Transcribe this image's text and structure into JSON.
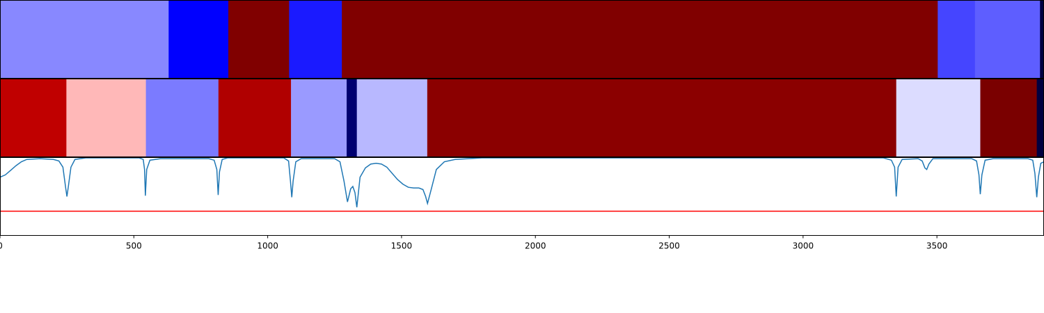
{
  "chart_data": {
    "type": "heatmap",
    "title": "",
    "xlabel": "",
    "ylabel": "",
    "xlim": [
      0,
      3900
    ],
    "x_ticks": [
      "0",
      "500",
      "1000",
      "1500",
      "2000",
      "2500",
      "3000",
      "3500"
    ],
    "tick_values": [
      0,
      500,
      1000,
      1500,
      2000,
      2500,
      3000,
      3500
    ],
    "segment_rows": [
      {
        "row": 1,
        "segments": [
          {
            "start": 0,
            "end": 630,
            "color": "#8888ff"
          },
          {
            "start": 630,
            "end": 853,
            "color": "#0000ff"
          },
          {
            "start": 853,
            "end": 1080,
            "color": "#800000"
          },
          {
            "start": 1080,
            "end": 1277,
            "color": "#1a1aff"
          },
          {
            "start": 1277,
            "end": 3503,
            "color": "#800000"
          },
          {
            "start": 3503,
            "end": 3642,
            "color": "#4545ff"
          },
          {
            "start": 3642,
            "end": 3885,
            "color": "#5e5eff"
          },
          {
            "start": 3885,
            "end": 3900,
            "color": "#000040"
          }
        ]
      },
      {
        "row": 2,
        "segments": [
          {
            "start": 0,
            "end": 248,
            "color": "#c00000"
          },
          {
            "start": 248,
            "end": 545,
            "color": "#ffb8b8"
          },
          {
            "start": 545,
            "end": 816,
            "color": "#7b7bff"
          },
          {
            "start": 816,
            "end": 1087,
            "color": "#b00000"
          },
          {
            "start": 1087,
            "end": 1295,
            "color": "#9a9aff"
          },
          {
            "start": 1295,
            "end": 1333,
            "color": "#000070"
          },
          {
            "start": 1333,
            "end": 1596,
            "color": "#b8b8ff"
          },
          {
            "start": 1596,
            "end": 3348,
            "color": "#8b0000"
          },
          {
            "start": 3348,
            "end": 3662,
            "color": "#dcdcff"
          },
          {
            "start": 3662,
            "end": 3873,
            "color": "#7a0000"
          },
          {
            "start": 3873,
            "end": 3900,
            "color": "#000040"
          }
        ]
      }
    ],
    "line_panel": {
      "ylim": [
        0,
        1
      ],
      "threshold": {
        "y": 0.31,
        "color": "#ff0000"
      },
      "line_color": "#1f77b4",
      "points": [
        [
          0,
          0.75
        ],
        [
          20,
          0.78
        ],
        [
          40,
          0.84
        ],
        [
          60,
          0.9
        ],
        [
          80,
          0.95
        ],
        [
          100,
          0.98
        ],
        [
          150,
          0.99
        ],
        [
          200,
          0.98
        ],
        [
          220,
          0.96
        ],
        [
          235,
          0.88
        ],
        [
          245,
          0.62
        ],
        [
          250,
          0.5
        ],
        [
          255,
          0.62
        ],
        [
          265,
          0.88
        ],
        [
          280,
          0.98
        ],
        [
          320,
          1.0
        ],
        [
          520,
          1.0
        ],
        [
          535,
          0.98
        ],
        [
          540,
          0.85
        ],
        [
          543,
          0.51
        ],
        [
          548,
          0.85
        ],
        [
          560,
          0.97
        ],
        [
          600,
          0.99
        ],
        [
          780,
          0.99
        ],
        [
          800,
          0.97
        ],
        [
          810,
          0.85
        ],
        [
          815,
          0.52
        ],
        [
          820,
          0.82
        ],
        [
          830,
          0.98
        ],
        [
          850,
          1.0
        ],
        [
          1060,
          1.0
        ],
        [
          1078,
          0.96
        ],
        [
          1085,
          0.7
        ],
        [
          1090,
          0.49
        ],
        [
          1095,
          0.7
        ],
        [
          1105,
          0.95
        ],
        [
          1125,
          0.99
        ],
        [
          1250,
          0.99
        ],
        [
          1270,
          0.95
        ],
        [
          1285,
          0.7
        ],
        [
          1298,
          0.43
        ],
        [
          1310,
          0.6
        ],
        [
          1318,
          0.63
        ],
        [
          1326,
          0.55
        ],
        [
          1333,
          0.36
        ],
        [
          1345,
          0.75
        ],
        [
          1365,
          0.87
        ],
        [
          1385,
          0.92
        ],
        [
          1405,
          0.93
        ],
        [
          1425,
          0.92
        ],
        [
          1445,
          0.88
        ],
        [
          1465,
          0.8
        ],
        [
          1485,
          0.72
        ],
        [
          1505,
          0.66
        ],
        [
          1525,
          0.62
        ],
        [
          1545,
          0.61
        ],
        [
          1565,
          0.61
        ],
        [
          1580,
          0.59
        ],
        [
          1590,
          0.5
        ],
        [
          1597,
          0.41
        ],
        [
          1610,
          0.58
        ],
        [
          1630,
          0.85
        ],
        [
          1660,
          0.95
        ],
        [
          1700,
          0.98
        ],
        [
          1800,
          1.0
        ],
        [
          3300,
          1.0
        ],
        [
          3330,
          0.97
        ],
        [
          3342,
          0.88
        ],
        [
          3348,
          0.5
        ],
        [
          3355,
          0.88
        ],
        [
          3370,
          0.98
        ],
        [
          3430,
          0.99
        ],
        [
          3445,
          0.96
        ],
        [
          3455,
          0.87
        ],
        [
          3462,
          0.85
        ],
        [
          3470,
          0.92
        ],
        [
          3485,
          0.99
        ],
        [
          3630,
          0.99
        ],
        [
          3648,
          0.96
        ],
        [
          3657,
          0.78
        ],
        [
          3662,
          0.53
        ],
        [
          3668,
          0.78
        ],
        [
          3680,
          0.97
        ],
        [
          3710,
          0.99
        ],
        [
          3840,
          0.99
        ],
        [
          3858,
          0.97
        ],
        [
          3866,
          0.8
        ],
        [
          3873,
          0.49
        ],
        [
          3879,
          0.75
        ],
        [
          3888,
          0.93
        ],
        [
          3900,
          0.95
        ]
      ]
    }
  }
}
